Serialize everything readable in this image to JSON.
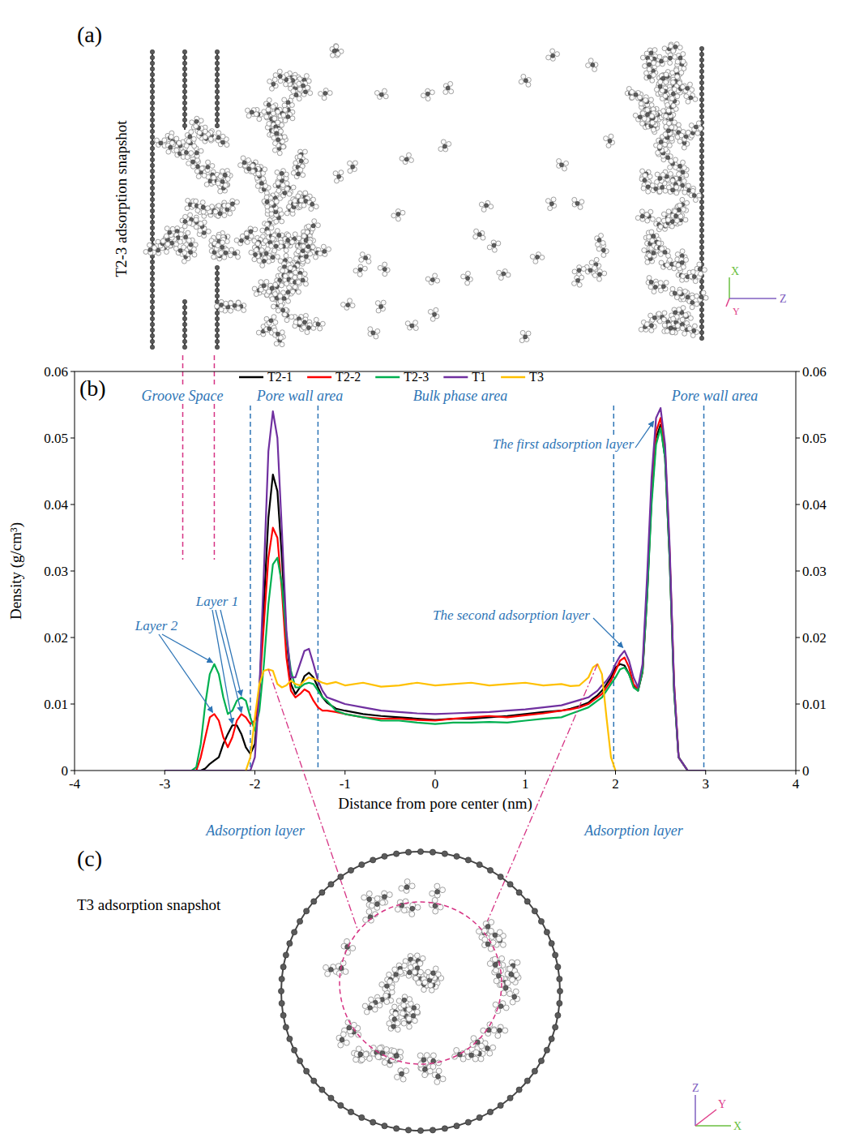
{
  "panel_a": {
    "label": "(a)",
    "caption": "T2-3 adsorption snapshot",
    "axes": {
      "x": "X",
      "y": "Y",
      "z": "Z"
    }
  },
  "chart_data": {
    "type": "line",
    "label": "(b)",
    "xlabel": "Distance from pore center (nm)",
    "ylabel": "Density (g/cm³)",
    "xlim": [
      -4,
      4
    ],
    "xticks": [
      -4,
      -3,
      -2,
      -1,
      0,
      1,
      2,
      3,
      4
    ],
    "ylim": [
      0,
      0.06
    ],
    "yticks": [
      0,
      0.01,
      0.02,
      0.03,
      0.04,
      0.05,
      0.06
    ],
    "y2lim": [
      0,
      0.06
    ],
    "y2ticks": [
      0,
      0.01,
      0.02,
      0.03,
      0.04,
      0.05,
      0.06
    ],
    "legend": "top",
    "x": [
      -3,
      -2.8,
      -2.7,
      -2.65,
      -2.6,
      -2.55,
      -2.5,
      -2.45,
      -2.4,
      -2.35,
      -2.3,
      -2.25,
      -2.2,
      -2.15,
      -2.1,
      -2.05,
      -2,
      -1.95,
      -1.9,
      -1.85,
      -1.8,
      -1.75,
      -1.7,
      -1.65,
      -1.6,
      -1.55,
      -1.5,
      -1.45,
      -1.4,
      -1.35,
      -1.3,
      -1.25,
      -1.2,
      -1.1,
      -1,
      -0.8,
      -0.6,
      -0.4,
      -0.2,
      0,
      0.2,
      0.4,
      0.6,
      0.8,
      1,
      1.2,
      1.4,
      1.5,
      1.6,
      1.7,
      1.75,
      1.8,
      1.85,
      1.9,
      1.95,
      2,
      2.05,
      2.1,
      2.15,
      2.2,
      2.25,
      2.3,
      2.35,
      2.4,
      2.45,
      2.5,
      2.55,
      2.6,
      2.65,
      2.7,
      2.8,
      3
    ],
    "series": [
      {
        "name": "T2-1",
        "color": "#000000",
        "values": [
          0,
          0,
          0,
          0,
          0,
          0.0003,
          0.001,
          0.0015,
          0.002,
          0.004,
          0.0055,
          0.0068,
          0.0068,
          0.0055,
          0.0035,
          0.0025,
          0.004,
          0.012,
          0.025,
          0.038,
          0.0445,
          0.042,
          0.032,
          0.02,
          0.013,
          0.0115,
          0.0125,
          0.0142,
          0.0147,
          0.014,
          0.0125,
          0.011,
          0.0102,
          0.0093,
          0.009,
          0.0085,
          0.0082,
          0.008,
          0.0078,
          0.0076,
          0.0078,
          0.0078,
          0.008,
          0.0082,
          0.0085,
          0.0088,
          0.009,
          0.0093,
          0.0097,
          0.0102,
          0.0108,
          0.0113,
          0.012,
          0.013,
          0.014,
          0.0155,
          0.016,
          0.0158,
          0.0145,
          0.0128,
          0.012,
          0.0148,
          0.026,
          0.041,
          0.05,
          0.052,
          0.047,
          0.032,
          0.012,
          0.002,
          0,
          0
        ]
      },
      {
        "name": "T2-2",
        "color": "#ff0000",
        "values": [
          0,
          0,
          0,
          0,
          0.002,
          0.005,
          0.008,
          0.0085,
          0.0075,
          0.005,
          0.0035,
          0.005,
          0.0075,
          0.0085,
          0.008,
          0.007,
          0.0075,
          0.012,
          0.022,
          0.032,
          0.0365,
          0.035,
          0.027,
          0.017,
          0.012,
          0.011,
          0.0115,
          0.0122,
          0.0118,
          0.0105,
          0.0095,
          0.009,
          0.009,
          0.0088,
          0.0085,
          0.008,
          0.0078,
          0.0078,
          0.0076,
          0.0075,
          0.0078,
          0.008,
          0.0082,
          0.008,
          0.0083,
          0.0086,
          0.009,
          0.0092,
          0.0095,
          0.01,
          0.0105,
          0.011,
          0.0115,
          0.0125,
          0.0135,
          0.015,
          0.0165,
          0.017,
          0.0155,
          0.013,
          0.0122,
          0.015,
          0.027,
          0.042,
          0.051,
          0.053,
          0.048,
          0.033,
          0.013,
          0.002,
          0,
          0
        ]
      },
      {
        "name": "T2-3",
        "color": "#00b050",
        "values": [
          0,
          0,
          0,
          0.0005,
          0.004,
          0.01,
          0.0145,
          0.016,
          0.0145,
          0.011,
          0.0085,
          0.009,
          0.0105,
          0.011,
          0.0105,
          0.008,
          0.006,
          0.009,
          0.016,
          0.025,
          0.031,
          0.032,
          0.028,
          0.02,
          0.015,
          0.0125,
          0.0125,
          0.013,
          0.0132,
          0.013,
          0.012,
          0.011,
          0.0105,
          0.009,
          0.0085,
          0.008,
          0.0075,
          0.0075,
          0.0072,
          0.007,
          0.0072,
          0.0072,
          0.0073,
          0.0072,
          0.0075,
          0.0078,
          0.008,
          0.0085,
          0.009,
          0.0095,
          0.01,
          0.0105,
          0.011,
          0.012,
          0.013,
          0.014,
          0.0152,
          0.0155,
          0.0145,
          0.0125,
          0.012,
          0.015,
          0.026,
          0.04,
          0.049,
          0.0515,
          0.047,
          0.032,
          0.012,
          0.002,
          0,
          0
        ]
      },
      {
        "name": "T1",
        "color": "#7030a0",
        "values": [
          0,
          0,
          0,
          0,
          0,
          0,
          0,
          0,
          0,
          0,
          0,
          0,
          0,
          0,
          0,
          0,
          0.002,
          0.012,
          0.03,
          0.048,
          0.054,
          0.05,
          0.036,
          0.021,
          0.014,
          0.014,
          0.016,
          0.018,
          0.0183,
          0.016,
          0.0135,
          0.012,
          0.011,
          0.0105,
          0.01,
          0.0095,
          0.009,
          0.0088,
          0.0086,
          0.0085,
          0.0086,
          0.0087,
          0.0088,
          0.009,
          0.0092,
          0.0095,
          0.0098,
          0.0102,
          0.0106,
          0.011,
          0.0115,
          0.012,
          0.0128,
          0.0135,
          0.0145,
          0.016,
          0.0172,
          0.018,
          0.0165,
          0.014,
          0.0125,
          0.016,
          0.029,
          0.044,
          0.053,
          0.0545,
          0.049,
          0.034,
          0.013,
          0.002,
          0,
          0
        ]
      },
      {
        "name": "T3",
        "color": "#ffc000",
        "values": [
          null,
          null,
          null,
          null,
          null,
          null,
          null,
          null,
          null,
          null,
          null,
          null,
          null,
          null,
          0,
          0.002,
          0.008,
          0.013,
          0.015,
          0.0152,
          0.015,
          0.013,
          0.0125,
          0.0128,
          0.0135,
          0.013,
          0.0128,
          0.0135,
          0.014,
          0.0138,
          0.0135,
          0.0132,
          0.013,
          0.0133,
          0.0128,
          0.0132,
          0.0126,
          0.0128,
          0.0132,
          0.0128,
          0.013,
          0.0132,
          0.0128,
          0.013,
          0.0132,
          0.0128,
          0.013,
          0.0127,
          0.0128,
          0.014,
          0.0155,
          0.016,
          0.0145,
          0.008,
          0.002,
          0,
          null,
          null,
          null,
          null,
          null,
          null,
          null,
          null,
          null,
          null,
          null,
          null,
          null,
          null,
          null,
          null
        ]
      }
    ],
    "vertical_lines": {
      "groove_space": [
        -2.8,
        -2.45
      ],
      "pore_wall": [
        -2.05,
        -1.3,
        1.98,
        2.98
      ]
    },
    "region_labels": [
      "Groove Space",
      "Pore wall area",
      "Bulk phase area",
      "Pore wall area"
    ],
    "annotations": [
      "Layer 1",
      "Layer 2",
      "The first adsorption layer",
      "The second adsorption layer",
      "Adsorption layer",
      "Adsorption layer"
    ]
  },
  "panel_c": {
    "label": "(c)",
    "caption": "T3 adsorption snapshot",
    "axes": {
      "x": "X",
      "y": "Y",
      "z": "Z"
    }
  }
}
